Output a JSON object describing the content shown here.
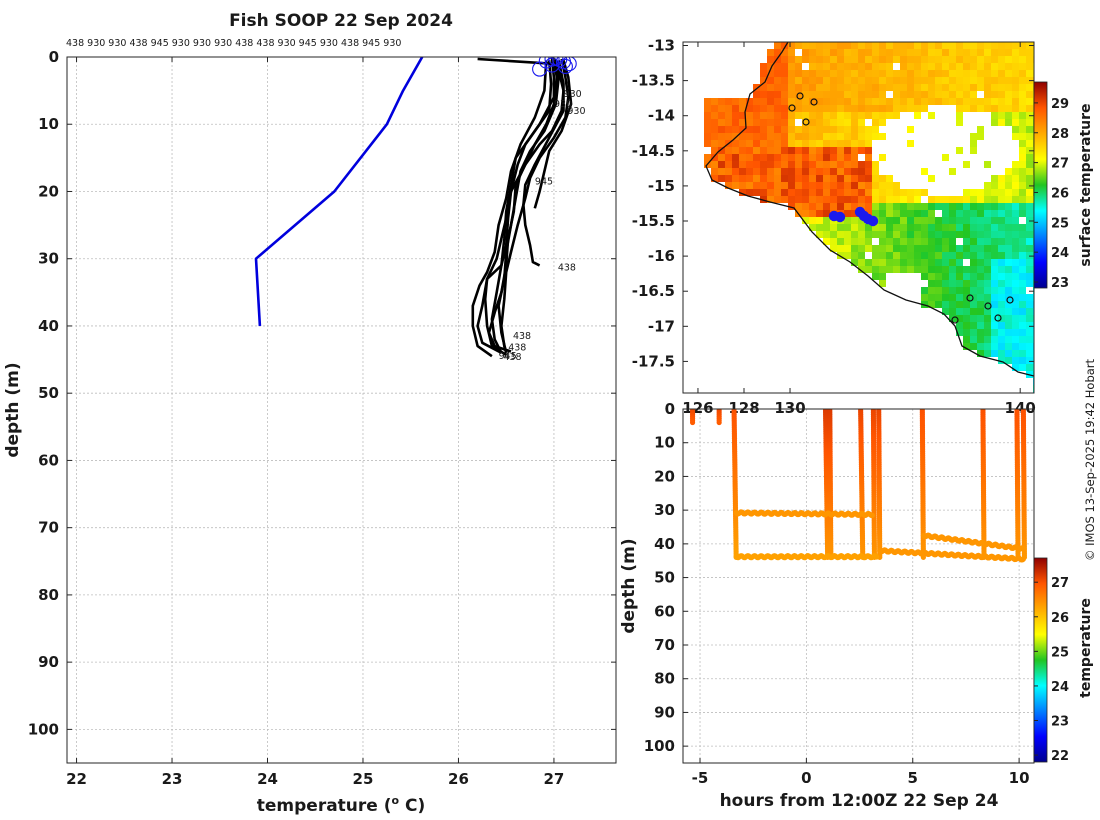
{
  "title": "Fish SOOP 22 Sep 2024",
  "credit": "© IMOS 13-Sep-2025 19:42 Hobart",
  "chart_data": [
    {
      "type": "line",
      "xlabel": "temperature (",
      "xlabel_sup": "o",
      "xlabel_end": " C)",
      "ylabel": "depth (m)",
      "xlim": [
        21.9,
        27.65
      ],
      "ylim": [
        105,
        0
      ],
      "xticks": [
        22,
        23,
        24,
        25,
        26,
        27
      ],
      "yticks": [
        0,
        10,
        20,
        30,
        40,
        50,
        60,
        70,
        80,
        90,
        100
      ],
      "top_labels": "438 930 930 438 945 930 930 930 438 438 930 945 930 438 945 930",
      "profile_labels": [
        "930",
        "930",
        "438",
        "438",
        "438",
        "438",
        "930",
        "945",
        "945"
      ],
      "series": [
        {
          "color": "#0000dd",
          "points": [
            [
              25.62,
              0
            ],
            [
              25.42,
              5
            ],
            [
              25.25,
              10
            ],
            [
              24.7,
              20
            ],
            [
              23.88,
              30
            ],
            [
              23.92,
              40
            ]
          ]
        },
        {
          "color": "#000000",
          "points": [
            [
              26.2,
              0.3
            ],
            [
              26.98,
              1.0
            ],
            [
              27.05,
              2
            ],
            [
              27.1,
              5
            ],
            [
              27.08,
              8
            ],
            [
              26.98,
              11
            ],
            [
              26.85,
              13
            ],
            [
              26.7,
              16
            ],
            [
              26.55,
              20
            ],
            [
              26.5,
              24
            ],
            [
              26.45,
              27
            ],
            [
              26.4,
              30
            ],
            [
              26.3,
              33
            ],
            [
              26.25,
              37
            ],
            [
              26.2,
              40
            ],
            [
              26.25,
              42.5
            ],
            [
              26.45,
              44
            ]
          ]
        },
        {
          "color": "#000000",
          "points": [
            [
              26.95,
              0.5
            ],
            [
              26.97,
              4
            ],
            [
              26.95,
              8
            ],
            [
              26.75,
              12
            ],
            [
              26.6,
              15
            ],
            [
              26.55,
              19
            ],
            [
              26.5,
              23
            ],
            [
              26.48,
              27
            ],
            [
              26.45,
              31
            ],
            [
              26.4,
              35
            ],
            [
              26.35,
              39
            ],
            [
              26.38,
              42
            ],
            [
              26.45,
              44
            ]
          ]
        },
        {
          "color": "#000000",
          "points": [
            [
              27.02,
              0.3
            ],
            [
              27.05,
              3
            ],
            [
              27.02,
              7
            ],
            [
              26.9,
              11
            ],
            [
              26.75,
              14
            ],
            [
              26.65,
              17
            ],
            [
              26.6,
              21
            ],
            [
              26.55,
              25
            ],
            [
              26.5,
              29
            ],
            [
              26.48,
              33
            ],
            [
              26.42,
              37
            ],
            [
              26.45,
              41
            ],
            [
              26.5,
              44
            ]
          ]
        },
        {
          "color": "#000000",
          "points": [
            [
              26.98,
              0.2
            ],
            [
              27.0,
              3
            ],
            [
              27.0,
              6
            ],
            [
              26.85,
              10
            ],
            [
              26.7,
              13
            ],
            [
              26.62,
              16
            ],
            [
              26.55,
              20
            ],
            [
              26.52,
              24
            ],
            [
              26.5,
              28
            ],
            [
              26.45,
              31
            ],
            [
              26.3,
              33
            ],
            [
              26.28,
              36
            ],
            [
              26.3,
              40
            ],
            [
              26.35,
              43
            ],
            [
              26.5,
              44.3
            ]
          ]
        },
        {
          "color": "#000000",
          "points": [
            [
              27.05,
              0.5
            ],
            [
              27.1,
              4
            ],
            [
              27.1,
              8
            ],
            [
              26.95,
              12
            ],
            [
              26.8,
              16
            ],
            [
              26.7,
              19
            ],
            [
              26.68,
              22
            ],
            [
              26.7,
              25
            ],
            [
              26.75,
              28
            ],
            [
              26.78,
              30.5
            ],
            [
              26.85,
              31
            ]
          ]
        },
        {
          "color": "#000000",
          "points": [
            [
              27.0,
              0.4
            ],
            [
              27.03,
              3
            ],
            [
              27.0,
              7
            ],
            [
              26.92,
              10
            ],
            [
              26.8,
              13
            ],
            [
              26.7,
              16
            ],
            [
              26.6,
              19
            ],
            [
              26.58,
              23
            ],
            [
              26.52,
              27
            ],
            [
              26.5,
              31
            ],
            [
              26.45,
              35
            ],
            [
              26.38,
              38
            ],
            [
              26.32,
              41
            ],
            [
              26.38,
              43
            ],
            [
              26.55,
              43.8
            ]
          ]
        },
        {
          "color": "#000000",
          "points": [
            [
              27.08,
              0.3
            ],
            [
              27.12,
              3
            ],
            [
              27.15,
              6
            ],
            [
              27.12,
              9
            ],
            [
              27.0,
              12
            ],
            [
              26.85,
              15
            ],
            [
              26.75,
              18
            ],
            [
              26.7,
              21
            ],
            [
              26.62,
              25
            ],
            [
              26.55,
              29
            ],
            [
              26.5,
              32
            ],
            [
              26.48,
              36
            ],
            [
              26.45,
              40
            ],
            [
              26.48,
              43
            ],
            [
              26.5,
              44
            ]
          ]
        },
        {
          "color": "#000000",
          "points": [
            [
              27.1,
              0.5
            ],
            [
              27.15,
              3
            ],
            [
              27.18,
              7
            ],
            [
              27.08,
              11
            ],
            [
              26.95,
              14
            ],
            [
              26.9,
              17
            ],
            [
              26.85,
              20
            ],
            [
              26.8,
              22.5
            ]
          ]
        },
        {
          "color": "#000000",
          "points": [
            [
              26.92,
              0.5
            ],
            [
              26.9,
              5
            ],
            [
              26.8,
              9
            ],
            [
              26.65,
              13
            ],
            [
              26.55,
              17
            ],
            [
              26.5,
              21
            ],
            [
              26.42,
              25
            ],
            [
              26.38,
              29
            ],
            [
              26.3,
              32
            ],
            [
              26.22,
              34
            ],
            [
              26.15,
              37
            ],
            [
              26.15,
              40
            ],
            [
              26.2,
              43
            ],
            [
              26.35,
              44.5
            ]
          ]
        }
      ]
    },
    {
      "type": "heatmap",
      "colorbar_label": "surface temperature",
      "xlim": [
        125.35,
        140.6
      ],
      "ylim": [
        -17.95,
        -12.95
      ],
      "xticks": [
        126,
        128,
        130,
        140
      ],
      "xtick_labels": [
        "126",
        "128",
        "130",
        "140"
      ],
      "yticks": [
        -13,
        -13.5,
        -14,
        -14.5,
        -15,
        -15.5,
        -16,
        -16.5,
        -17,
        -17.5
      ],
      "clim": [
        22.8,
        29.7
      ],
      "colorbar_ticks": [
        23,
        24,
        25,
        26,
        27,
        28,
        29
      ],
      "vessel_track_color": "#1a1aee"
    },
    {
      "type": "scatter",
      "xlabel": "hours from 12:00Z 22 Sep 24",
      "ylabel": "depth (m)",
      "colorbar_label": "temperature",
      "xlim": [
        -5.8,
        10.7
      ],
      "ylim": [
        105,
        0
      ],
      "xticks": [
        -5,
        0,
        5,
        10
      ],
      "yticks": [
        0,
        10,
        20,
        30,
        40,
        50,
        60,
        70,
        80,
        90,
        100
      ],
      "clim": [
        21.8,
        27.7
      ],
      "colorbar_ticks": [
        22,
        23,
        24,
        25,
        26,
        27
      ],
      "casts": [
        {
          "t0": -5.35,
          "t1": -5.35,
          "maxDepth": 4,
          "surfaceTemp": 27.1,
          "bottomTemp": 26.9
        },
        {
          "t0": -4.1,
          "t1": -4.1,
          "maxDepth": 4,
          "surfaceTemp": 27.1,
          "bottomTemp": 26.9
        },
        {
          "t0": -3.4,
          "t1": -3.3,
          "maxDepth": 44,
          "surfaceTemp": 27.0,
          "bottomTemp": 26.3
        },
        {
          "t0": 0.9,
          "t1": 1.0,
          "maxDepth": 44,
          "surfaceTemp": 27.2,
          "bottomTemp": 26.4
        },
        {
          "t0": 1.1,
          "t1": 1.15,
          "maxDepth": 44,
          "surfaceTemp": 27.2,
          "bottomTemp": 26.4
        },
        {
          "t0": 2.55,
          "t1": 2.65,
          "maxDepth": 44,
          "surfaceTemp": 27.1,
          "bottomTemp": 26.4
        },
        {
          "t0": 3.15,
          "t1": 3.2,
          "maxDepth": 44,
          "surfaceTemp": 27.1,
          "bottomTemp": 26.4
        },
        {
          "t0": 3.4,
          "t1": 3.45,
          "maxDepth": 44,
          "surfaceTemp": 27.1,
          "bottomTemp": 26.4
        },
        {
          "t0": 5.45,
          "t1": 5.5,
          "maxDepth": 44,
          "surfaceTemp": 27.0,
          "bottomTemp": 26.4
        },
        {
          "t0": 8.3,
          "t1": 8.35,
          "maxDepth": 44,
          "surfaceTemp": 27.0,
          "bottomTemp": 26.4
        },
        {
          "t0": 9.9,
          "t1": 9.95,
          "maxDepth": 44,
          "surfaceTemp": 27.0,
          "bottomTemp": 26.4
        },
        {
          "t0": 10.2,
          "t1": 10.25,
          "maxDepth": 44,
          "surfaceTemp": 27.0,
          "bottomTemp": 26.4
        }
      ],
      "layers": [
        {
          "t0": -3.3,
          "t1": 3.3,
          "depth0": 43.8,
          "depth1": 43.8,
          "temp": 26.3
        },
        {
          "t0": -3.3,
          "t1": 3.1,
          "depth0": 30.8,
          "depth1": 31.3,
          "temp": 26.4
        },
        {
          "t0": 3.45,
          "t1": 10.2,
          "depth0": 42.0,
          "depth1": 44.5,
          "temp": 26.4
        },
        {
          "t0": 5.5,
          "t1": 10.2,
          "depth0": 37.5,
          "depth1": 41.5,
          "temp": 26.4
        }
      ]
    }
  ]
}
